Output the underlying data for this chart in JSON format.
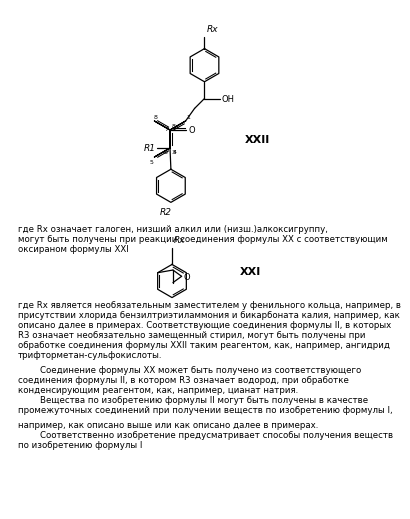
{
  "background_color": "#ffffff",
  "xxii_label": "XXII",
  "xxi_label": "XXI",
  "text_blocks": [
    {
      "text": "где Rx означает галоген, низший алкил или (низш.)алкоксигруппу,",
      "fontsize": 6.2
    },
    {
      "text": "могут быть получены при реакции соединения формулы XX с соответствующим",
      "fontsize": 6.2
    },
    {
      "text": "оксираном формулы XXI",
      "fontsize": 6.2
    },
    {
      "text": "где Rx является необязательным заместителем у фенильного кольца, например, в",
      "fontsize": 6.2
    },
    {
      "text": "присутствии хлорида бензилтриэтиламмония и бикарбоната калия, например, как",
      "fontsize": 6.2
    },
    {
      "text": "описано далее в примерах. Соответствующие соединения формулы II, в которых",
      "fontsize": 6.2
    },
    {
      "text": "R3 означает необязательно замещенный стирил, могут быть получены при",
      "fontsize": 6.2
    },
    {
      "text": "обработке соединения формулы XXII таким реагентом, как, например, ангидрид",
      "fontsize": 6.2
    },
    {
      "text": "трифторметан-сульфокислоты.",
      "fontsize": 6.2
    },
    {
      "text": "        Соединение формулы XX может быть получено из соответствующего",
      "fontsize": 6.2
    },
    {
      "text": "соединения формулы II, в котором R3 означает водород, при обработке",
      "fontsize": 6.2
    },
    {
      "text": "конденсирующим реагентом, как, например, цианат натрия.",
      "fontsize": 6.2
    },
    {
      "text": "        Вещества по изобретению формулы II могут быть получены в качестве",
      "fontsize": 6.2
    },
    {
      "text": "промежуточных соединений при получении веществ по изобретению формулы I,",
      "fontsize": 6.2
    },
    {
      "text": "например, как описано выше или как описано далее в примерах.",
      "fontsize": 6.2
    },
    {
      "text": "        Соответственно изобретение предусматривает способы получения веществ",
      "fontsize": 6.2
    },
    {
      "text": "по изобретению формулы I",
      "fontsize": 6.2
    }
  ]
}
